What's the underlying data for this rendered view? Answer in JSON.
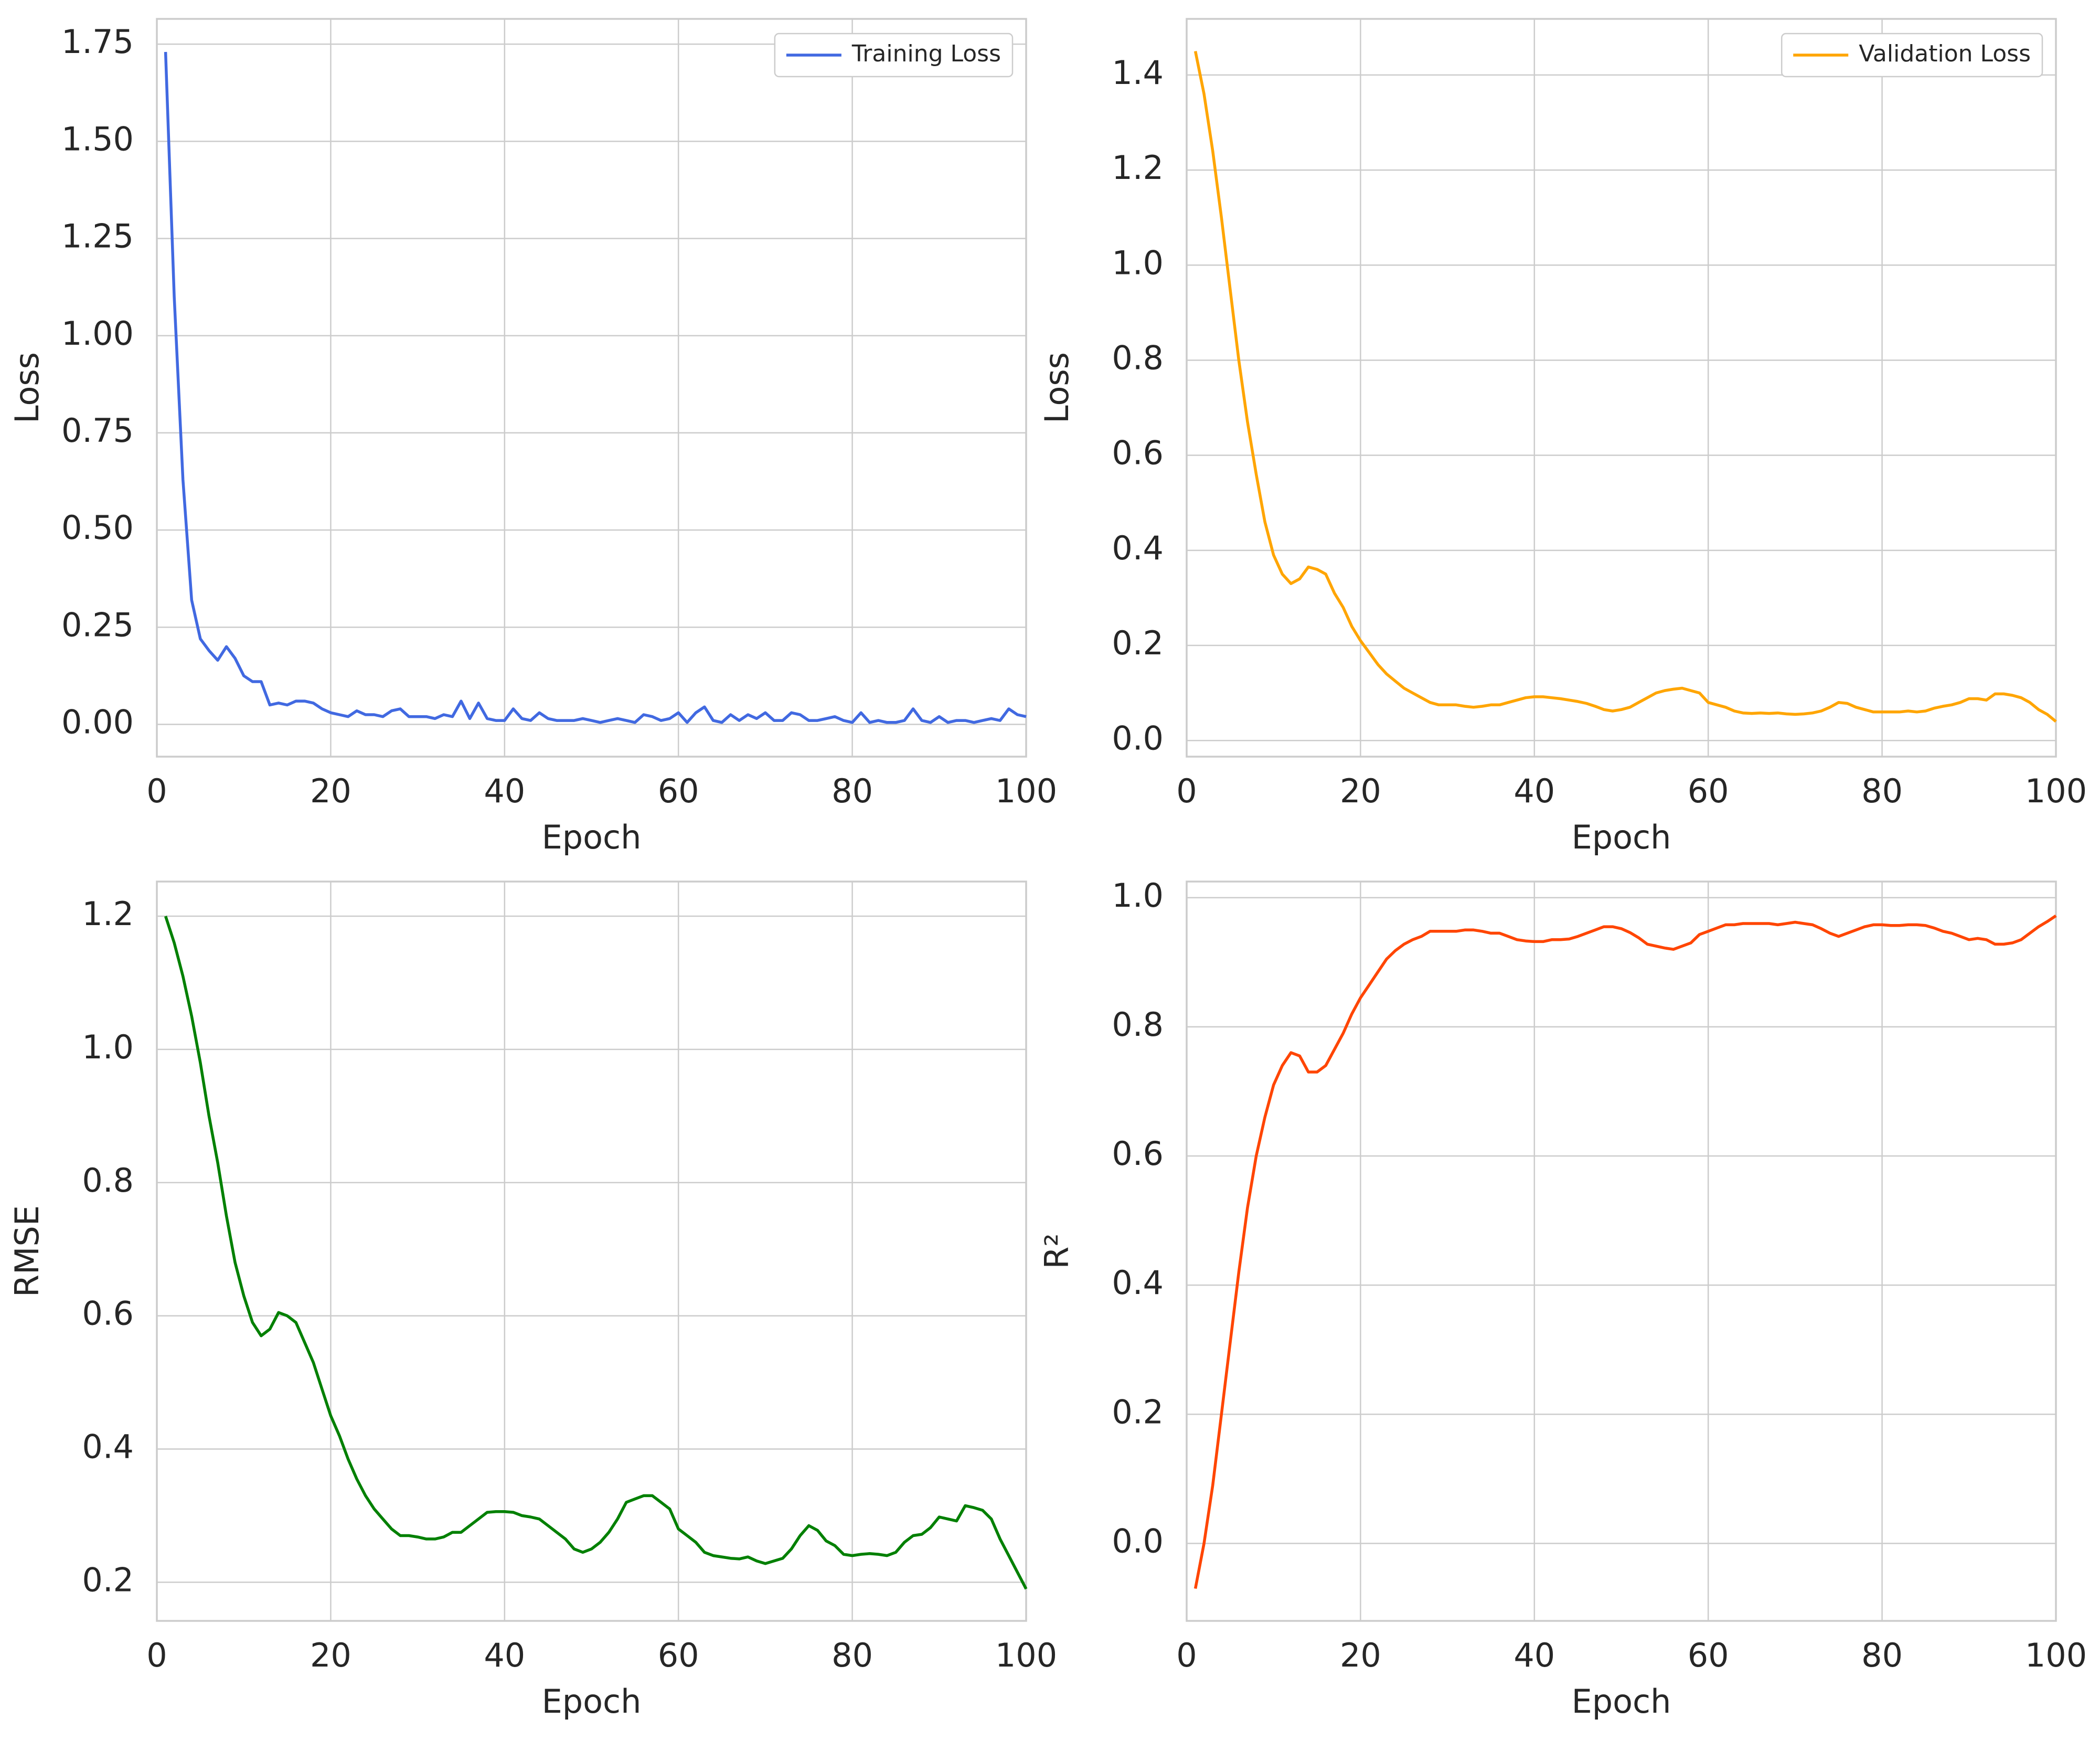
{
  "chart_data": [
    {
      "type": "line",
      "xlabel": "Epoch",
      "ylabel": "Loss",
      "legend": "upper right",
      "grid": true,
      "x": [
        1,
        2,
        3,
        4,
        5,
        6,
        7,
        8,
        9,
        10,
        11,
        12,
        13,
        14,
        15,
        16,
        17,
        18,
        19,
        20,
        21,
        22,
        23,
        24,
        25,
        26,
        27,
        28,
        29,
        30,
        31,
        32,
        33,
        34,
        35,
        36,
        37,
        38,
        39,
        40,
        41,
        42,
        43,
        44,
        45,
        46,
        47,
        48,
        49,
        50,
        51,
        52,
        53,
        54,
        55,
        56,
        57,
        58,
        59,
        60,
        61,
        62,
        63,
        64,
        65,
        66,
        67,
        68,
        69,
        70,
        71,
        72,
        73,
        74,
        75,
        76,
        77,
        78,
        79,
        80,
        81,
        82,
        83,
        84,
        85,
        86,
        87,
        88,
        89,
        90,
        91,
        92,
        93,
        94,
        95,
        96,
        97,
        98,
        99,
        100
      ],
      "series": [
        {
          "name": "Training Loss",
          "color": "#4169e1",
          "values": [
            1.73,
            1.1,
            0.63,
            0.32,
            0.22,
            0.19,
            0.165,
            0.2,
            0.17,
            0.125,
            0.11,
            0.11,
            0.05,
            0.055,
            0.05,
            0.06,
            0.06,
            0.055,
            0.04,
            0.03,
            0.025,
            0.02,
            0.035,
            0.025,
            0.025,
            0.02,
            0.035,
            0.04,
            0.02,
            0.02,
            0.02,
            0.015,
            0.025,
            0.02,
            0.06,
            0.015,
            0.055,
            0.015,
            0.01,
            0.01,
            0.04,
            0.015,
            0.01,
            0.03,
            0.015,
            0.01,
            0.01,
            0.01,
            0.015,
            0.01,
            0.005,
            0.01,
            0.015,
            0.01,
            0.005,
            0.025,
            0.02,
            0.01,
            0.015,
            0.03,
            0.005,
            0.03,
            0.045,
            0.01,
            0.005,
            0.025,
            0.01,
            0.025,
            0.015,
            0.03,
            0.01,
            0.01,
            0.03,
            0.025,
            0.01,
            0.01,
            0.015,
            0.02,
            0.01,
            0.005,
            0.03,
            0.005,
            0.01,
            0.005,
            0.005,
            0.01,
            0.04,
            0.01,
            0.005,
            0.02,
            0.005,
            0.01,
            0.01,
            0.005,
            0.01,
            0.015,
            0.01,
            0.04,
            0.025,
            0.02
          ]
        }
      ],
      "xlim": [
        0,
        100
      ],
      "xticks": [
        0,
        20,
        40,
        60,
        80,
        100
      ],
      "ylim": [
        -0.083,
        1.815
      ],
      "yticks": [
        {
          "value": 0,
          "label": "0.00"
        },
        {
          "value": 0.25,
          "label": "0.25"
        },
        {
          "value": 0.5,
          "label": "0.50"
        },
        {
          "value": 0.75,
          "label": "0.75"
        },
        {
          "value": 1,
          "label": "1.00"
        },
        {
          "value": 1.25,
          "label": "1.25"
        },
        {
          "value": 1.5,
          "label": "1.50"
        },
        {
          "value": 1.75,
          "label": "1.75"
        }
      ]
    },
    {
      "type": "line",
      "xlabel": "Epoch",
      "ylabel": "Loss",
      "legend": "upper right",
      "grid": true,
      "x": [
        1,
        2,
        3,
        4,
        5,
        6,
        7,
        8,
        9,
        10,
        11,
        12,
        13,
        14,
        15,
        16,
        17,
        18,
        19,
        20,
        21,
        22,
        23,
        24,
        25,
        26,
        27,
        28,
        29,
        30,
        31,
        32,
        33,
        34,
        35,
        36,
        37,
        38,
        39,
        40,
        41,
        42,
        43,
        44,
        45,
        46,
        47,
        48,
        49,
        50,
        51,
        52,
        53,
        54,
        55,
        56,
        57,
        58,
        59,
        60,
        61,
        62,
        63,
        64,
        65,
        66,
        67,
        68,
        69,
        70,
        71,
        72,
        73,
        74,
        75,
        76,
        77,
        78,
        79,
        80,
        81,
        82,
        83,
        84,
        85,
        86,
        87,
        88,
        89,
        90,
        91,
        92,
        93,
        94,
        95,
        96,
        97,
        98,
        99,
        100
      ],
      "series": [
        {
          "name": "Validation Loss",
          "color": "#ffa500",
          "values": [
            1.45,
            1.36,
            1.24,
            1.1,
            0.95,
            0.8,
            0.67,
            0.56,
            0.46,
            0.39,
            0.35,
            0.33,
            0.34,
            0.365,
            0.36,
            0.35,
            0.31,
            0.28,
            0.24,
            0.21,
            0.185,
            0.16,
            0.14,
            0.125,
            0.11,
            0.1,
            0.09,
            0.08,
            0.075,
            0.075,
            0.075,
            0.072,
            0.07,
            0.072,
            0.075,
            0.075,
            0.08,
            0.085,
            0.09,
            0.092,
            0.092,
            0.09,
            0.088,
            0.085,
            0.082,
            0.078,
            0.072,
            0.065,
            0.062,
            0.065,
            0.07,
            0.08,
            0.09,
            0.1,
            0.105,
            0.108,
            0.11,
            0.105,
            0.1,
            0.08,
            0.075,
            0.07,
            0.062,
            0.058,
            0.057,
            0.058,
            0.057,
            0.058,
            0.056,
            0.055,
            0.056,
            0.058,
            0.062,
            0.07,
            0.08,
            0.078,
            0.07,
            0.065,
            0.06,
            0.06,
            0.06,
            0.06,
            0.062,
            0.06,
            0.062,
            0.068,
            0.072,
            0.075,
            0.08,
            0.088,
            0.088,
            0.085,
            0.098,
            0.098,
            0.095,
            0.09,
            0.08,
            0.065,
            0.055,
            0.04
          ]
        }
      ],
      "xlim": [
        0,
        100
      ],
      "xticks": [
        0,
        20,
        40,
        60,
        80,
        100
      ],
      "ylim": [
        -0.034,
        1.518
      ],
      "yticks": [
        {
          "value": 0,
          "label": "0.0"
        },
        0.2,
        0.4,
        0.6,
        0.8,
        {
          "value": 1,
          "label": "1.0"
        },
        1.2,
        1.4
      ]
    },
    {
      "type": "line",
      "xlabel": "Epoch",
      "ylabel": "RMSE",
      "grid": true,
      "x": [
        1,
        2,
        3,
        4,
        5,
        6,
        7,
        8,
        9,
        10,
        11,
        12,
        13,
        14,
        15,
        16,
        17,
        18,
        19,
        20,
        21,
        22,
        23,
        24,
        25,
        26,
        27,
        28,
        29,
        30,
        31,
        32,
        33,
        34,
        35,
        36,
        37,
        38,
        39,
        40,
        41,
        42,
        43,
        44,
        45,
        46,
        47,
        48,
        49,
        50,
        51,
        52,
        53,
        54,
        55,
        56,
        57,
        58,
        59,
        60,
        61,
        62,
        63,
        64,
        65,
        66,
        67,
        68,
        69,
        70,
        71,
        72,
        73,
        74,
        75,
        76,
        77,
        78,
        79,
        80,
        81,
        82,
        83,
        84,
        85,
        86,
        87,
        88,
        89,
        90,
        91,
        92,
        93,
        94,
        95,
        96,
        97,
        98,
        99,
        100
      ],
      "series": [
        {
          "color": "#008000",
          "values": [
            1.2,
            1.16,
            1.11,
            1.05,
            0.98,
            0.9,
            0.83,
            0.75,
            0.68,
            0.63,
            0.59,
            0.57,
            0.58,
            0.605,
            0.6,
            0.59,
            0.56,
            0.53,
            0.49,
            0.45,
            0.42,
            0.385,
            0.355,
            0.33,
            0.31,
            0.295,
            0.28,
            0.27,
            0.27,
            0.268,
            0.265,
            0.265,
            0.268,
            0.275,
            0.275,
            0.285,
            0.295,
            0.305,
            0.306,
            0.306,
            0.305,
            0.3,
            0.298,
            0.295,
            0.285,
            0.275,
            0.265,
            0.25,
            0.245,
            0.25,
            0.26,
            0.275,
            0.295,
            0.32,
            0.325,
            0.33,
            0.33,
            0.32,
            0.31,
            0.28,
            0.27,
            0.26,
            0.245,
            0.24,
            0.238,
            0.236,
            0.235,
            0.238,
            0.232,
            0.228,
            0.232,
            0.236,
            0.25,
            0.27,
            0.285,
            0.278,
            0.262,
            0.255,
            0.242,
            0.24,
            0.242,
            0.243,
            0.242,
            0.24,
            0.245,
            0.26,
            0.27,
            0.272,
            0.282,
            0.298,
            0.295,
            0.292,
            0.315,
            0.312,
            0.308,
            0.295,
            0.265,
            0.24,
            0.215,
            0.19
          ]
        }
      ],
      "xlim": [
        0,
        100
      ],
      "xticks": [
        0,
        20,
        40,
        60,
        80,
        100
      ],
      "ylim": [
        0.142,
        1.252
      ],
      "yticks": [
        0.2,
        0.4,
        0.6,
        0.8,
        {
          "value": 1,
          "label": "1.0"
        },
        1.2
      ]
    },
    {
      "type": "line",
      "xlabel": "Epoch",
      "ylabel": "R²",
      "grid": true,
      "x": [
        1,
        2,
        3,
        4,
        5,
        6,
        7,
        8,
        9,
        10,
        11,
        12,
        13,
        14,
        15,
        16,
        17,
        18,
        19,
        20,
        21,
        22,
        23,
        24,
        25,
        26,
        27,
        28,
        29,
        30,
        31,
        32,
        33,
        34,
        35,
        36,
        37,
        38,
        39,
        40,
        41,
        42,
        43,
        44,
        45,
        46,
        47,
        48,
        49,
        50,
        51,
        52,
        53,
        54,
        55,
        56,
        57,
        58,
        59,
        60,
        61,
        62,
        63,
        64,
        65,
        66,
        67,
        68,
        69,
        70,
        71,
        72,
        73,
        74,
        75,
        76,
        77,
        78,
        79,
        80,
        81,
        82,
        83,
        84,
        85,
        86,
        87,
        88,
        89,
        90,
        91,
        92,
        93,
        94,
        95,
        96,
        97,
        98,
        99,
        100
      ],
      "series": [
        {
          "color": "#ff4500",
          "values": [
            -0.07,
            0.0,
            0.09,
            0.2,
            0.31,
            0.42,
            0.52,
            0.6,
            0.66,
            0.71,
            0.74,
            0.76,
            0.755,
            0.73,
            0.73,
            0.74,
            0.765,
            0.79,
            0.82,
            0.845,
            0.865,
            0.885,
            0.905,
            0.918,
            0.928,
            0.935,
            0.94,
            0.948,
            0.948,
            0.948,
            0.948,
            0.95,
            0.95,
            0.948,
            0.945,
            0.945,
            0.94,
            0.935,
            0.933,
            0.932,
            0.932,
            0.935,
            0.935,
            0.936,
            0.94,
            0.945,
            0.95,
            0.955,
            0.955,
            0.952,
            0.946,
            0.938,
            0.928,
            0.925,
            0.922,
            0.92,
            0.925,
            0.93,
            0.943,
            0.948,
            0.953,
            0.958,
            0.958,
            0.96,
            0.96,
            0.96,
            0.96,
            0.958,
            0.96,
            0.962,
            0.96,
            0.958,
            0.952,
            0.945,
            0.94,
            0.945,
            0.95,
            0.955,
            0.958,
            0.958,
            0.957,
            0.957,
            0.958,
            0.958,
            0.957,
            0.953,
            0.948,
            0.945,
            0.94,
            0.935,
            0.937,
            0.935,
            0.928,
            0.928,
            0.93,
            0.935,
            0.945,
            0.955,
            0.963,
            0.972
          ]
        }
      ],
      "xlim": [
        0,
        100
      ],
      "xticks": [
        0,
        20,
        40,
        60,
        80,
        100
      ],
      "ylim": [
        -0.12,
        1.025
      ],
      "yticks": [
        {
          "value": 0,
          "label": "0.0"
        },
        0.2,
        0.4,
        0.6,
        0.8,
        {
          "value": 1,
          "label": "1.0"
        }
      ]
    }
  ]
}
